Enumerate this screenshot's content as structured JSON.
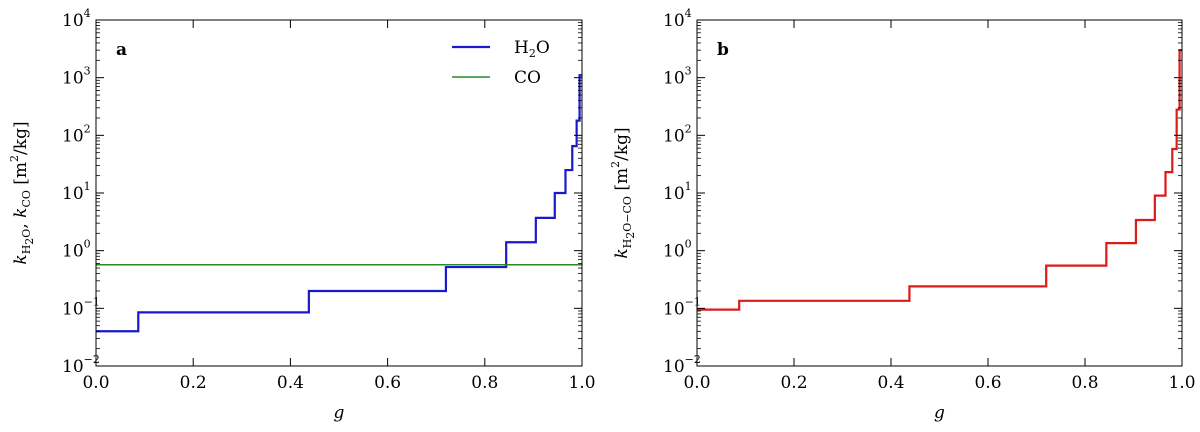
{
  "chart_data": [
    {
      "panel": "a",
      "type": "line",
      "step": "post",
      "xlabel": "g",
      "ylabel": "k_{H2O}, k_{CO} [m²/kg]",
      "ylabel_parts": [
        "k",
        "H",
        "2",
        "O",
        ", ",
        "k",
        "CO",
        " [m",
        "2",
        "/kg]"
      ],
      "xlim": [
        0.0,
        1.0
      ],
      "ylim": [
        0.01,
        10000
      ],
      "yscale": "log",
      "xticks": [
        "0.0",
        "0.2",
        "0.4",
        "0.6",
        "0.8",
        "1.0"
      ],
      "yticks": [
        {
          "base": "10",
          "exp": "−2"
        },
        {
          "base": "10",
          "exp": "−1"
        },
        {
          "base": "10",
          "exp": "0"
        },
        {
          "base": "10",
          "exp": "1"
        },
        {
          "base": "10",
          "exp": "2"
        },
        {
          "base": "10",
          "exp": "3"
        },
        {
          "base": "10",
          "exp": "4"
        }
      ],
      "grid": false,
      "legend_position": "top-right",
      "series": [
        {
          "name": "H2O",
          "name_parts": [
            "H",
            "2",
            "O"
          ],
          "color": "#1a1acc",
          "x": [
            0.0,
            0.087,
            0.438,
            0.72,
            0.844,
            0.905,
            0.944,
            0.966,
            0.98,
            0.989,
            0.995,
            1.0
          ],
          "y": [
            0.04,
            0.085,
            0.2,
            0.52,
            1.4,
            3.7,
            10,
            25,
            65,
            180,
            1100,
            1100
          ]
        },
        {
          "name": "CO",
          "name_parts": [
            "CO"
          ],
          "color": "#2a8a2a",
          "x": [
            0.0,
            1.0
          ],
          "y": [
            0.57,
            0.57
          ]
        }
      ]
    },
    {
      "panel": "b",
      "type": "line",
      "step": "post",
      "xlabel": "g",
      "ylabel": "k_{H2O−CO} [m²/kg]",
      "ylabel_parts": [
        "k",
        "H",
        "2",
        "O−CO",
        " [m",
        "2",
        "/kg]"
      ],
      "xlim": [
        0.0,
        1.0
      ],
      "ylim": [
        0.01,
        10000
      ],
      "yscale": "log",
      "xticks": [
        "0.0",
        "0.2",
        "0.4",
        "0.6",
        "0.8",
        "1.0"
      ],
      "yticks": [
        {
          "base": "10",
          "exp": "−2"
        },
        {
          "base": "10",
          "exp": "−1"
        },
        {
          "base": "10",
          "exp": "0"
        },
        {
          "base": "10",
          "exp": "1"
        },
        {
          "base": "10",
          "exp": "2"
        },
        {
          "base": "10",
          "exp": "3"
        },
        {
          "base": "10",
          "exp": "4"
        }
      ],
      "grid": false,
      "series": [
        {
          "color": "#dd1a1a",
          "x": [
            0.0,
            0.087,
            0.438,
            0.72,
            0.844,
            0.905,
            0.944,
            0.966,
            0.98,
            0.989,
            0.995,
            1.0
          ],
          "y": [
            0.095,
            0.135,
            0.24,
            0.55,
            1.35,
            3.4,
            9,
            23,
            58,
            280,
            3000,
            3000
          ]
        }
      ]
    }
  ]
}
